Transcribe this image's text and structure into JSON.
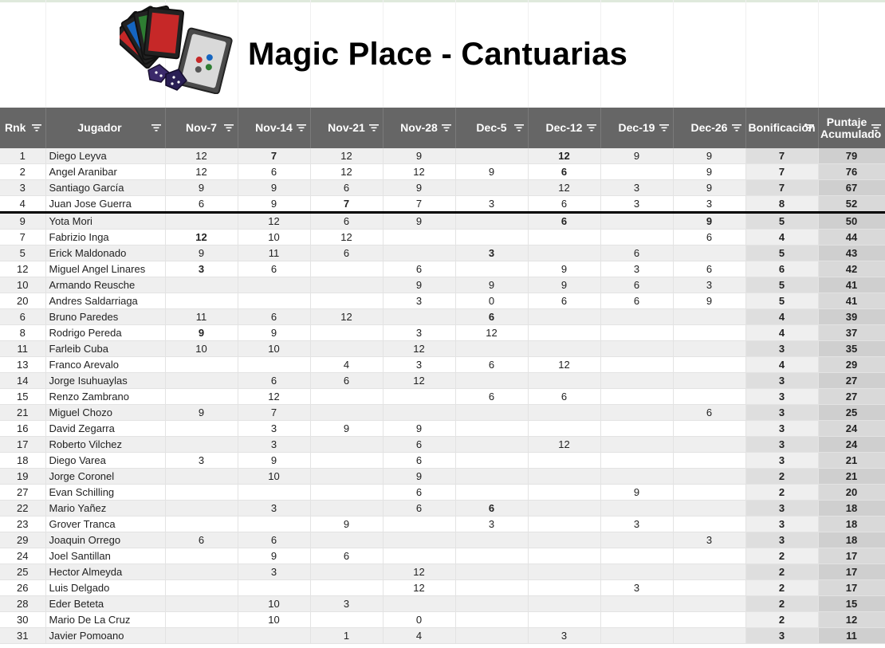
{
  "title": "Magic Place - Cantuarias",
  "logo": {
    "icon": "magic-cards-dice-logo",
    "text": "MAGIC PLACE"
  },
  "columns": [
    "Rnk",
    "Jugador",
    "Nov-7",
    "Nov-14",
    "Nov-21",
    "Nov-28",
    "Dec-5",
    "Dec-12",
    "Dec-19",
    "Dec-26",
    "Bonificación",
    "Puntaje Acumulado"
  ],
  "rows": [
    {
      "rnk": "1",
      "name": "Diego Leyva",
      "scores": [
        "12",
        "7",
        "12",
        "9",
        "",
        "12",
        "9",
        "9"
      ],
      "bonus": "7",
      "total": "79"
    },
    {
      "rnk": "2",
      "name": "Angel Aranibar",
      "scores": [
        "12",
        "6",
        "12",
        "12",
        "9",
        "6",
        "",
        "9"
      ],
      "bonus": "7",
      "total": "76"
    },
    {
      "rnk": "3",
      "name": "Santiago García",
      "scores": [
        "9",
        "9",
        "6",
        "9",
        "",
        "12",
        "3",
        "9"
      ],
      "bonus": "7",
      "total": "67"
    },
    {
      "rnk": "4",
      "name": "Juan Jose Guerra",
      "scores": [
        "6",
        "9",
        "7",
        "7",
        "3",
        "6",
        "3",
        "3"
      ],
      "bonus": "8",
      "total": "52"
    },
    {
      "rnk": "9",
      "name": "Yota Mori",
      "scores": [
        "",
        "12",
        "6",
        "9",
        "",
        "6",
        "",
        "9"
      ],
      "bonus": "5",
      "total": "50"
    },
    {
      "rnk": "7",
      "name": "Fabrizio Inga",
      "scores": [
        "12",
        "10",
        "12",
        "",
        "",
        "",
        "",
        "6"
      ],
      "bonus": "4",
      "total": "44"
    },
    {
      "rnk": "5",
      "name": "Erick Maldonado",
      "scores": [
        "9",
        "11",
        "6",
        "",
        "3",
        "",
        "6",
        ""
      ],
      "bonus": "5",
      "total": "43"
    },
    {
      "rnk": "12",
      "name": "Miguel Angel Linares",
      "scores": [
        "3",
        "6",
        "",
        "6",
        "",
        "9",
        "3",
        "6"
      ],
      "bonus": "6",
      "total": "42"
    },
    {
      "rnk": "10",
      "name": "Armando Reusche",
      "scores": [
        "",
        "",
        "",
        "9",
        "9",
        "9",
        "6",
        "3"
      ],
      "bonus": "5",
      "total": "41"
    },
    {
      "rnk": "20",
      "name": "Andres Saldarriaga",
      "scores": [
        "",
        "",
        "",
        "3",
        "0",
        "6",
        "6",
        "9"
      ],
      "bonus": "5",
      "total": "41"
    },
    {
      "rnk": "6",
      "name": "Bruno Paredes",
      "scores": [
        "11",
        "6",
        "12",
        "",
        "6",
        "",
        "",
        ""
      ],
      "bonus": "4",
      "total": "39"
    },
    {
      "rnk": "8",
      "name": "Rodrigo Pereda",
      "scores": [
        "9",
        "9",
        "",
        "3",
        "12",
        "",
        "",
        ""
      ],
      "bonus": "4",
      "total": "37"
    },
    {
      "rnk": "11",
      "name": "Farleib Cuba",
      "scores": [
        "10",
        "10",
        "",
        "12",
        "",
        "",
        "",
        ""
      ],
      "bonus": "3",
      "total": "35"
    },
    {
      "rnk": "13",
      "name": "Franco Arevalo",
      "scores": [
        "",
        "",
        "4",
        "3",
        "6",
        "12",
        "",
        ""
      ],
      "bonus": "4",
      "total": "29"
    },
    {
      "rnk": "14",
      "name": "Jorge Isuhuaylas",
      "scores": [
        "",
        "6",
        "6",
        "12",
        "",
        "",
        "",
        ""
      ],
      "bonus": "3",
      "total": "27"
    },
    {
      "rnk": "15",
      "name": "Renzo Zambrano",
      "scores": [
        "",
        "12",
        "",
        "",
        "6",
        "6",
        "",
        ""
      ],
      "bonus": "3",
      "total": "27"
    },
    {
      "rnk": "21",
      "name": "Miguel Chozo",
      "scores": [
        "9",
        "7",
        "",
        "",
        "",
        "",
        "",
        "6"
      ],
      "bonus": "3",
      "total": "25"
    },
    {
      "rnk": "16",
      "name": "David Zegarra",
      "scores": [
        "",
        "3",
        "9",
        "9",
        "",
        "",
        "",
        ""
      ],
      "bonus": "3",
      "total": "24"
    },
    {
      "rnk": "17",
      "name": "Roberto Vilchez",
      "scores": [
        "",
        "3",
        "",
        "6",
        "",
        "12",
        "",
        ""
      ],
      "bonus": "3",
      "total": "24"
    },
    {
      "rnk": "18",
      "name": "Diego Varea",
      "scores": [
        "3",
        "9",
        "",
        "6",
        "",
        "",
        "",
        ""
      ],
      "bonus": "3",
      "total": "21"
    },
    {
      "rnk": "19",
      "name": "Jorge Coronel",
      "scores": [
        "",
        "10",
        "",
        "9",
        "",
        "",
        "",
        ""
      ],
      "bonus": "2",
      "total": "21"
    },
    {
      "rnk": "27",
      "name": "Evan Schilling",
      "scores": [
        "",
        "",
        "",
        "6",
        "",
        "",
        "9",
        ""
      ],
      "bonus": "2",
      "total": "20"
    },
    {
      "rnk": "22",
      "name": "Mario Yañez",
      "scores": [
        "",
        "3",
        "",
        "6",
        "6",
        "",
        "",
        ""
      ],
      "bonus": "3",
      "total": "18"
    },
    {
      "rnk": "23",
      "name": "Grover Tranca",
      "scores": [
        "",
        "",
        "9",
        "",
        "3",
        "",
        "3",
        ""
      ],
      "bonus": "3",
      "total": "18"
    },
    {
      "rnk": "29",
      "name": "Joaquin Orrego",
      "scores": [
        "6",
        "6",
        "",
        "",
        "",
        "",
        "",
        "3"
      ],
      "bonus": "3",
      "total": "18"
    },
    {
      "rnk": "24",
      "name": "Joel Santillan",
      "scores": [
        "",
        "9",
        "6",
        "",
        "",
        "",
        "",
        ""
      ],
      "bonus": "2",
      "total": "17"
    },
    {
      "rnk": "25",
      "name": "Hector Almeyda",
      "scores": [
        "",
        "3",
        "",
        "12",
        "",
        "",
        "",
        ""
      ],
      "bonus": "2",
      "total": "17"
    },
    {
      "rnk": "26",
      "name": "Luis Delgado",
      "scores": [
        "",
        "",
        "",
        "12",
        "",
        "",
        "3",
        ""
      ],
      "bonus": "2",
      "total": "17"
    },
    {
      "rnk": "28",
      "name": "Eder Beteta",
      "scores": [
        "",
        "10",
        "3",
        "",
        "",
        "",
        "",
        ""
      ],
      "bonus": "2",
      "total": "15"
    },
    {
      "rnk": "30",
      "name": "Mario De La Cruz",
      "scores": [
        "",
        "10",
        "",
        "0",
        "",
        "",
        "",
        ""
      ],
      "bonus": "2",
      "total": "12"
    },
    {
      "rnk": "31",
      "name": "Javier Pomoano",
      "scores": [
        "",
        "",
        "1",
        "4",
        "",
        "3",
        "",
        ""
      ],
      "bonus": "3",
      "total": "11"
    }
  ]
}
